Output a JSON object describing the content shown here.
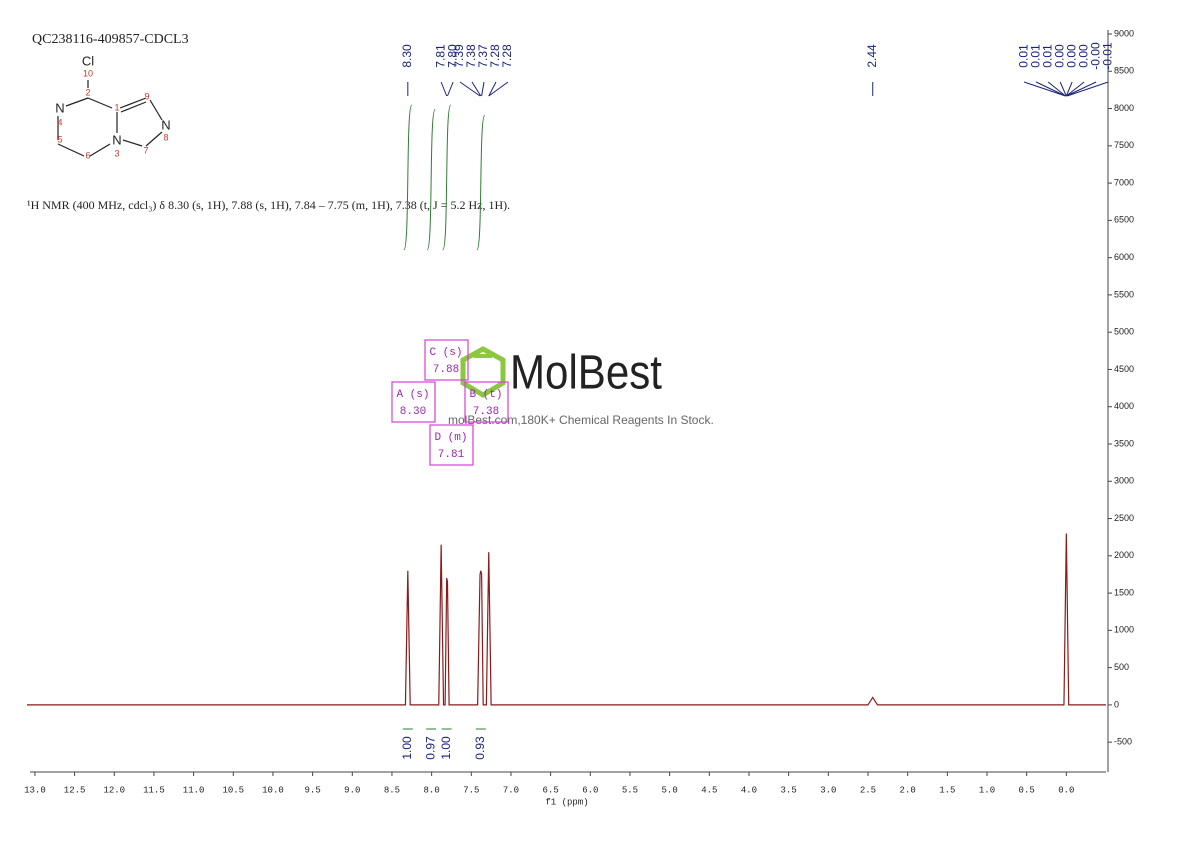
{
  "chart_data": {
    "type": "line",
    "title": "QC238116-409857-CDCL3",
    "subtitle": "¹H NMR (400 MHz, cdcl₃) δ 8.30 (s, 1H), 7.88 (s, 1H), 7.84 – 7.75 (m, 1H), 7.38 (t, J = 5.2 Hz, 1H).",
    "x_label": "f1 (ppm)",
    "x": [
      13.1,
      8.33,
      8.3,
      8.27,
      7.91,
      7.88,
      7.85,
      7.83,
      7.81,
      7.8,
      7.78,
      7.42,
      7.39,
      7.38,
      7.37,
      7.35,
      7.31,
      7.28,
      7.25,
      2.5,
      2.44,
      2.38,
      0.03,
      0.0,
      -0.03,
      -0.5
    ],
    "series": [
      {
        "name": "spectrum",
        "color": "#8b1a1a",
        "values": [
          0,
          0,
          1800,
          0,
          0,
          2150,
          0,
          0,
          1700,
          1650,
          0,
          0,
          1750,
          1800,
          1750,
          0,
          0,
          2050,
          0,
          0,
          100,
          0,
          0,
          2300,
          0,
          0
        ]
      }
    ],
    "xlim": [
      13.1,
      -0.5
    ],
    "ylim": [
      -900,
      9000
    ],
    "xticks": [
      {
        "value": 13,
        "label": "13.0"
      },
      12.5,
      {
        "value": 12,
        "label": "12.0"
      },
      11.5,
      {
        "value": 11,
        "label": "11.0"
      },
      10.5,
      {
        "value": 10,
        "label": "10.0"
      },
      9.5,
      {
        "value": 9,
        "label": "9.0"
      },
      8.5,
      {
        "value": 8,
        "label": "8.0"
      },
      7.5,
      {
        "value": 7,
        "label": "7.0"
      },
      6.5,
      {
        "value": 6,
        "label": "6.0"
      },
      5.5,
      {
        "value": 5,
        "label": "5.0"
      },
      4.5,
      {
        "value": 4,
        "label": "4.0"
      },
      3.5,
      {
        "value": 3,
        "label": "3.0"
      },
      2.5,
      {
        "value": 2,
        "label": "2.0"
      },
      1.5,
      {
        "value": 1,
        "label": "1.0"
      },
      0.5,
      {
        "value": 0,
        "label": "0.0"
      }
    ],
    "yticks": [
      -500,
      0,
      500,
      1000,
      1500,
      2000,
      2500,
      3000,
      3500,
      4000,
      4500,
      5000,
      5500,
      6000,
      6500,
      7000,
      7500,
      8000,
      8500,
      9000
    ],
    "peak_labels": [
      {
        "value": 8.3,
        "label": "8.30"
      },
      {
        "value": 7.81,
        "label": "7.81"
      },
      {
        "value": 7.8,
        "label": "7.80"
      },
      {
        "value": 7.39,
        "label": "7.39"
      },
      {
        "value": 7.38,
        "label": "7.38"
      },
      {
        "value": 7.37,
        "label": "7.37"
      },
      {
        "value": 7.28,
        "label": "7.28"
      },
      {
        "value": 7.28,
        "label": "7.28"
      },
      {
        "value": 2.44,
        "label": "2.44"
      },
      {
        "value": 0.01,
        "label": "0.01"
      },
      {
        "value": 0.01,
        "label": "0.01"
      },
      {
        "value": 0.01,
        "label": "0.01"
      },
      {
        "value": 0,
        "label": "0.00"
      },
      {
        "value": 0,
        "label": "0.00"
      },
      {
        "value": 0,
        "label": "0.00"
      },
      {
        "value": 0,
        "label": "-0.00"
      },
      {
        "value": -0.01,
        "label": "-0.01"
      }
    ],
    "integrals": [
      {
        "x": 8.3,
        "value": 1,
        "label": "1.00"
      },
      {
        "x": 7.88,
        "value": 0.97,
        "label": "0.97"
      },
      {
        "x": 7.81,
        "value": 1,
        "label": "1.00"
      },
      {
        "x": 7.38,
        "value": 0.93,
        "label": "0.93"
      }
    ],
    "multiplets": [
      {
        "name": "A (s)",
        "shift": {
          "value": 8.3,
          "label": "8.30"
        }
      },
      {
        "name": "C (s)",
        "shift": {
          "value": 7.88,
          "label": "7.88"
        }
      },
      {
        "name": "B (t)",
        "shift": {
          "value": 7.38,
          "label": "7.38"
        }
      },
      {
        "name": "D (m)",
        "shift": {
          "value": 7.81,
          "label": "7.81"
        }
      }
    ],
    "structure": {
      "atoms": [
        "Cl",
        "N",
        "N",
        "N"
      ],
      "numbers": [
        "10",
        "2",
        "1",
        "9",
        "8",
        "7",
        "3",
        "6",
        "5",
        "4"
      ]
    },
    "watermark": {
      "brand": "MolBest",
      "text": "molBest.com,180K+ Chemical Reagents In Stock."
    }
  }
}
